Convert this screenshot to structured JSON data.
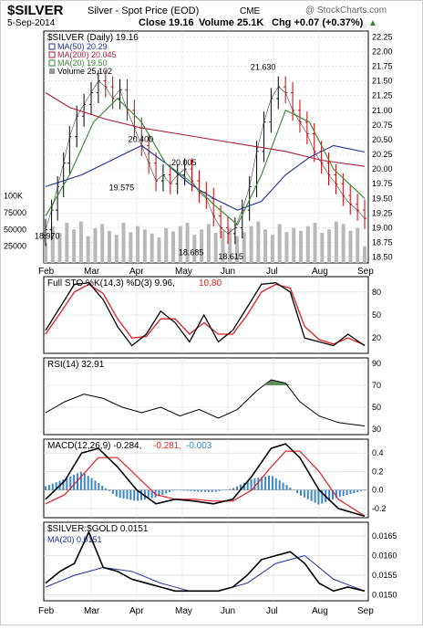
{
  "header": {
    "symbol": "$SILVER",
    "name": "Silver - Spot Price (EOD)",
    "exchange": "CME",
    "copyright": "@ StockCharts.com",
    "date": "5-Sep-2014",
    "close_label": "Close 19.16",
    "volume_label": "Volume 25.1K",
    "chg_label": "Chg +0.07 (+0.37%)",
    "chg_arrow": "▲"
  },
  "colors": {
    "price_up": "#000000",
    "price_down": "#cc0000",
    "ma50": "#1f2f9a",
    "ma200": "#b01c3c",
    "ma20": "#2f8a2f",
    "volume": "#b8b8b8",
    "stoch_k": "#000000",
    "stoch_d": "#e02020",
    "rsi": "#000000",
    "rsi_fill": "#5f8f5f",
    "macd_line": "#000000",
    "macd_signal": "#e02020",
    "macd_hist": "#3a86c8",
    "ratio": "#000000",
    "ratio_ma": "#1f2f9a"
  },
  "x_months": [
    "Feb",
    "Mar",
    "Apr",
    "May",
    "Jun",
    "Jul",
    "Aug",
    "Sep"
  ],
  "chart_data": [
    {
      "type": "line",
      "panel": "price",
      "legend": {
        "title": "$SILVER (Daily) 19.16",
        "ma50": "MA(50) 20.29",
        "ma200": "MA(200) 20.045",
        "ma20": "MA(20) 19.50",
        "volume": "Volume 25,102"
      },
      "ylim": [
        18.4,
        22.35
      ],
      "yticks": [
        "22.25",
        "22.00",
        "21.75",
        "21.50",
        "21.25",
        "21.00",
        "20.75",
        "20.50",
        "20.25",
        "20.00",
        "19.75",
        "19.50",
        "19.25",
        "19.00",
        "18.75",
        "18.50"
      ],
      "volume_ticks": [
        "100K",
        "75000",
        "50000",
        "25000"
      ],
      "annotations": [
        {
          "text": "20.400",
          "x": 3.9,
          "y": 20.4
        },
        {
          "text": "20.005",
          "x": 5.7,
          "y": 20.005
        },
        {
          "text": "19.575",
          "x": 3.1,
          "y": 19.575
        },
        {
          "text": "21.630",
          "x": 9.0,
          "y": 21.63
        },
        {
          "text": "18.970",
          "x": 0.0,
          "y": 18.97
        },
        {
          "text": "18.685",
          "x": 6.0,
          "y": 18.685
        },
        {
          "text": "18.615",
          "x": 7.65,
          "y": 18.615
        }
      ],
      "close_series": [
        {
          "x": 0.0,
          "y": 18.97
        },
        {
          "x": 0.25,
          "y": 19.3
        },
        {
          "x": 0.5,
          "y": 19.7
        },
        {
          "x": 0.75,
          "y": 20.1
        },
        {
          "x": 1.0,
          "y": 20.55
        },
        {
          "x": 1.3,
          "y": 20.9
        },
        {
          "x": 1.6,
          "y": 21.1
        },
        {
          "x": 1.9,
          "y": 21.3
        },
        {
          "x": 2.2,
          "y": 21.5
        },
        {
          "x": 2.5,
          "y": 21.4
        },
        {
          "x": 2.8,
          "y": 21.2
        },
        {
          "x": 3.1,
          "y": 21.35
        },
        {
          "x": 3.4,
          "y": 21.0
        },
        {
          "x": 3.7,
          "y": 20.7
        },
        {
          "x": 4.0,
          "y": 20.4
        },
        {
          "x": 4.3,
          "y": 20.1
        },
        {
          "x": 4.6,
          "y": 19.8
        },
        {
          "x": 4.9,
          "y": 19.9
        },
        {
          "x": 5.2,
          "y": 19.75
        },
        {
          "x": 5.5,
          "y": 19.9
        },
        {
          "x": 5.8,
          "y": 20.0
        },
        {
          "x": 6.1,
          "y": 19.8
        },
        {
          "x": 6.4,
          "y": 19.6
        },
        {
          "x": 6.7,
          "y": 19.5
        },
        {
          "x": 7.0,
          "y": 19.2
        },
        {
          "x": 7.3,
          "y": 19.0
        },
        {
          "x": 7.6,
          "y": 18.9
        },
        {
          "x": 7.9,
          "y": 19.0
        },
        {
          "x": 8.2,
          "y": 19.3
        },
        {
          "x": 8.5,
          "y": 19.7
        },
        {
          "x": 8.8,
          "y": 20.3
        },
        {
          "x": 9.1,
          "y": 20.8
        },
        {
          "x": 9.4,
          "y": 21.2
        },
        {
          "x": 9.7,
          "y": 21.4
        },
        {
          "x": 10.0,
          "y": 21.3
        },
        {
          "x": 10.3,
          "y": 21.0
        },
        {
          "x": 10.6,
          "y": 20.8
        },
        {
          "x": 10.9,
          "y": 20.6
        },
        {
          "x": 11.2,
          "y": 20.3
        },
        {
          "x": 11.5,
          "y": 20.1
        },
        {
          "x": 11.8,
          "y": 19.9
        },
        {
          "x": 12.1,
          "y": 19.75
        },
        {
          "x": 12.4,
          "y": 19.55
        },
        {
          "x": 12.7,
          "y": 19.4
        },
        {
          "x": 13.0,
          "y": 19.3
        },
        {
          "x": 13.3,
          "y": 19.16
        }
      ],
      "ma50": [
        {
          "x": 0.0,
          "y": 19.7
        },
        {
          "x": 1.5,
          "y": 19.9
        },
        {
          "x": 3.0,
          "y": 20.2
        },
        {
          "x": 4.0,
          "y": 20.4
        },
        {
          "x": 5.0,
          "y": 20.1
        },
        {
          "x": 6.0,
          "y": 19.75
        },
        {
          "x": 7.0,
          "y": 19.5
        },
        {
          "x": 8.0,
          "y": 19.3
        },
        {
          "x": 9.0,
          "y": 19.45
        },
        {
          "x": 10.0,
          "y": 19.9
        },
        {
          "x": 11.0,
          "y": 20.2
        },
        {
          "x": 12.0,
          "y": 20.4
        },
        {
          "x": 13.3,
          "y": 20.29
        }
      ],
      "ma200": [
        {
          "x": 0.0,
          "y": 21.3
        },
        {
          "x": 1.0,
          "y": 21.05
        },
        {
          "x": 2.5,
          "y": 20.85
        },
        {
          "x": 4.0,
          "y": 20.7
        },
        {
          "x": 5.5,
          "y": 20.6
        },
        {
          "x": 7.0,
          "y": 20.5
        },
        {
          "x": 8.5,
          "y": 20.4
        },
        {
          "x": 10.0,
          "y": 20.3
        },
        {
          "x": 11.5,
          "y": 20.15
        },
        {
          "x": 13.3,
          "y": 20.045
        }
      ],
      "ma20": [
        {
          "x": 0.0,
          "y": 19.2
        },
        {
          "x": 1.0,
          "y": 19.9
        },
        {
          "x": 2.0,
          "y": 20.8
        },
        {
          "x": 3.0,
          "y": 21.2
        },
        {
          "x": 4.0,
          "y": 20.8
        },
        {
          "x": 5.0,
          "y": 20.1
        },
        {
          "x": 6.0,
          "y": 19.8
        },
        {
          "x": 7.0,
          "y": 19.4
        },
        {
          "x": 8.0,
          "y": 19.05
        },
        {
          "x": 9.0,
          "y": 19.9
        },
        {
          "x": 10.0,
          "y": 21.0
        },
        {
          "x": 11.0,
          "y": 20.8
        },
        {
          "x": 12.0,
          "y": 20.0
        },
        {
          "x": 13.3,
          "y": 19.5
        }
      ],
      "volume_values": [
        30,
        55,
        45,
        60,
        50,
        62,
        40,
        52,
        58,
        48,
        42,
        60,
        46,
        55,
        50,
        44,
        38,
        52,
        47,
        55,
        60,
        42,
        50,
        58,
        45,
        48,
        52,
        40,
        46,
        55,
        62,
        50,
        42,
        58,
        46,
        52,
        48,
        55,
        60,
        45,
        50,
        62,
        58,
        48,
        52,
        25
      ]
    },
    {
      "type": "line",
      "panel": "stochastic",
      "legend": {
        "title": "Full STO %K(14,3) %D(3) 9.96,",
        "d_value": "10.80"
      },
      "ylim": [
        0,
        100
      ],
      "yticks": [
        "80",
        "50",
        "20"
      ],
      "k_series": [
        {
          "x": 0.0,
          "y": 30
        },
        {
          "x": 0.6,
          "y": 60
        },
        {
          "x": 1.2,
          "y": 90
        },
        {
          "x": 1.8,
          "y": 92
        },
        {
          "x": 2.4,
          "y": 70
        },
        {
          "x": 3.0,
          "y": 35
        },
        {
          "x": 3.6,
          "y": 10
        },
        {
          "x": 4.2,
          "y": 25
        },
        {
          "x": 4.8,
          "y": 55
        },
        {
          "x": 5.4,
          "y": 40
        },
        {
          "x": 6.0,
          "y": 15
        },
        {
          "x": 6.6,
          "y": 50
        },
        {
          "x": 7.2,
          "y": 15
        },
        {
          "x": 7.8,
          "y": 30
        },
        {
          "x": 8.4,
          "y": 60
        },
        {
          "x": 9.0,
          "y": 90
        },
        {
          "x": 9.6,
          "y": 92
        },
        {
          "x": 10.2,
          "y": 80
        },
        {
          "x": 10.8,
          "y": 20
        },
        {
          "x": 11.4,
          "y": 15
        },
        {
          "x": 12.0,
          "y": 10
        },
        {
          "x": 12.6,
          "y": 25
        },
        {
          "x": 13.3,
          "y": 9.96
        }
      ],
      "d_series": [
        {
          "x": 0.0,
          "y": 25
        },
        {
          "x": 0.6,
          "y": 52
        },
        {
          "x": 1.2,
          "y": 80
        },
        {
          "x": 1.8,
          "y": 90
        },
        {
          "x": 2.4,
          "y": 78
        },
        {
          "x": 3.0,
          "y": 45
        },
        {
          "x": 3.6,
          "y": 20
        },
        {
          "x": 4.2,
          "y": 22
        },
        {
          "x": 4.8,
          "y": 45
        },
        {
          "x": 5.4,
          "y": 45
        },
        {
          "x": 6.0,
          "y": 25
        },
        {
          "x": 6.6,
          "y": 40
        },
        {
          "x": 7.2,
          "y": 25
        },
        {
          "x": 7.8,
          "y": 25
        },
        {
          "x": 8.4,
          "y": 50
        },
        {
          "x": 9.0,
          "y": 80
        },
        {
          "x": 9.6,
          "y": 90
        },
        {
          "x": 10.2,
          "y": 85
        },
        {
          "x": 10.8,
          "y": 35
        },
        {
          "x": 11.4,
          "y": 18
        },
        {
          "x": 12.0,
          "y": 12
        },
        {
          "x": 12.6,
          "y": 20
        },
        {
          "x": 13.3,
          "y": 10.8
        }
      ]
    },
    {
      "type": "line",
      "panel": "rsi",
      "legend": {
        "title": "RSI(14) 32.91"
      },
      "ylim": [
        25,
        95
      ],
      "yticks": [
        "90",
        "70",
        "50",
        "30"
      ],
      "rsi_series": [
        {
          "x": 0.0,
          "y": 45
        },
        {
          "x": 0.8,
          "y": 55
        },
        {
          "x": 1.6,
          "y": 62
        },
        {
          "x": 2.4,
          "y": 58
        },
        {
          "x": 3.2,
          "y": 50
        },
        {
          "x": 4.0,
          "y": 45
        },
        {
          "x": 4.8,
          "y": 50
        },
        {
          "x": 5.6,
          "y": 42
        },
        {
          "x": 6.4,
          "y": 48
        },
        {
          "x": 7.2,
          "y": 40
        },
        {
          "x": 8.0,
          "y": 48
        },
        {
          "x": 8.8,
          "y": 65
        },
        {
          "x": 9.4,
          "y": 75
        },
        {
          "x": 10.0,
          "y": 72
        },
        {
          "x": 10.6,
          "y": 55
        },
        {
          "x": 11.4,
          "y": 42
        },
        {
          "x": 12.2,
          "y": 36
        },
        {
          "x": 13.3,
          "y": 32.91
        }
      ]
    },
    {
      "type": "bar",
      "panel": "macd",
      "legend": {
        "title": "MACD(12,26,9) -0.284,",
        "signal": "-0.281,",
        "hist": "-0.003"
      },
      "ylim": [
        -0.3,
        0.55
      ],
      "yticks": [
        "0.4",
        "0.2",
        "0.0",
        "-0.2"
      ],
      "macd_series": [
        {
          "x": 0.0,
          "y": -0.1
        },
        {
          "x": 0.8,
          "y": 0.1
        },
        {
          "x": 1.5,
          "y": 0.4
        },
        {
          "x": 2.2,
          "y": 0.45
        },
        {
          "x": 3.0,
          "y": 0.25
        },
        {
          "x": 3.8,
          "y": 0.0
        },
        {
          "x": 4.6,
          "y": -0.15
        },
        {
          "x": 5.4,
          "y": -0.1
        },
        {
          "x": 6.2,
          "y": -0.12
        },
        {
          "x": 7.0,
          "y": -0.15
        },
        {
          "x": 7.8,
          "y": -0.1
        },
        {
          "x": 8.6,
          "y": 0.15
        },
        {
          "x": 9.4,
          "y": 0.45
        },
        {
          "x": 10.0,
          "y": 0.5
        },
        {
          "x": 10.6,
          "y": 0.35
        },
        {
          "x": 11.4,
          "y": 0.0
        },
        {
          "x": 12.2,
          "y": -0.2
        },
        {
          "x": 13.3,
          "y": -0.284
        }
      ],
      "signal_series": [
        {
          "x": 0.0,
          "y": -0.15
        },
        {
          "x": 0.8,
          "y": -0.05
        },
        {
          "x": 1.5,
          "y": 0.15
        },
        {
          "x": 2.2,
          "y": 0.35
        },
        {
          "x": 3.0,
          "y": 0.35
        },
        {
          "x": 3.8,
          "y": 0.15
        },
        {
          "x": 4.6,
          "y": -0.05
        },
        {
          "x": 5.4,
          "y": -0.1
        },
        {
          "x": 6.2,
          "y": -0.1
        },
        {
          "x": 7.0,
          "y": -0.12
        },
        {
          "x": 7.8,
          "y": -0.12
        },
        {
          "x": 8.6,
          "y": 0.0
        },
        {
          "x": 9.4,
          "y": 0.25
        },
        {
          "x": 10.0,
          "y": 0.42
        },
        {
          "x": 10.6,
          "y": 0.42
        },
        {
          "x": 11.4,
          "y": 0.2
        },
        {
          "x": 12.2,
          "y": -0.1
        },
        {
          "x": 13.3,
          "y": -0.281
        }
      ]
    },
    {
      "type": "line",
      "panel": "ratio",
      "legend": {
        "title": "$SILVER:$GOLD 0.0151",
        "ma": "MA(20) 0.0151"
      },
      "ylim": [
        0.01485,
        0.01685
      ],
      "yticks": [
        "0.0165",
        "0.0160",
        "0.0155",
        "0.0150"
      ],
      "ratio_series": [
        {
          "x": 0.0,
          "y": 0.0153
        },
        {
          "x": 0.6,
          "y": 0.0156
        },
        {
          "x": 1.2,
          "y": 0.0158
        },
        {
          "x": 1.8,
          "y": 0.0166
        },
        {
          "x": 2.4,
          "y": 0.0157
        },
        {
          "x": 3.0,
          "y": 0.0156
        },
        {
          "x": 3.6,
          "y": 0.0154
        },
        {
          "x": 4.2,
          "y": 0.0153
        },
        {
          "x": 4.8,
          "y": 0.0152
        },
        {
          "x": 5.4,
          "y": 0.0151
        },
        {
          "x": 6.0,
          "y": 0.0151
        },
        {
          "x": 6.6,
          "y": 0.0151
        },
        {
          "x": 7.2,
          "y": 0.0151
        },
        {
          "x": 7.8,
          "y": 0.0152
        },
        {
          "x": 8.4,
          "y": 0.0155
        },
        {
          "x": 9.0,
          "y": 0.0159
        },
        {
          "x": 9.6,
          "y": 0.016
        },
        {
          "x": 10.2,
          "y": 0.0161
        },
        {
          "x": 10.8,
          "y": 0.0158
        },
        {
          "x": 11.4,
          "y": 0.0153
        },
        {
          "x": 12.0,
          "y": 0.0151
        },
        {
          "x": 12.6,
          "y": 0.0152
        },
        {
          "x": 13.3,
          "y": 0.0151
        }
      ],
      "ratio_ma_series": [
        {
          "x": 0.0,
          "y": 0.0152
        },
        {
          "x": 1.2,
          "y": 0.0155
        },
        {
          "x": 2.4,
          "y": 0.0157
        },
        {
          "x": 3.6,
          "y": 0.0156
        },
        {
          "x": 4.8,
          "y": 0.0153
        },
        {
          "x": 6.0,
          "y": 0.0151
        },
        {
          "x": 7.2,
          "y": 0.0151
        },
        {
          "x": 8.4,
          "y": 0.0153
        },
        {
          "x": 9.6,
          "y": 0.0158
        },
        {
          "x": 10.8,
          "y": 0.016
        },
        {
          "x": 12.0,
          "y": 0.0154
        },
        {
          "x": 13.3,
          "y": 0.0151
        }
      ]
    }
  ]
}
